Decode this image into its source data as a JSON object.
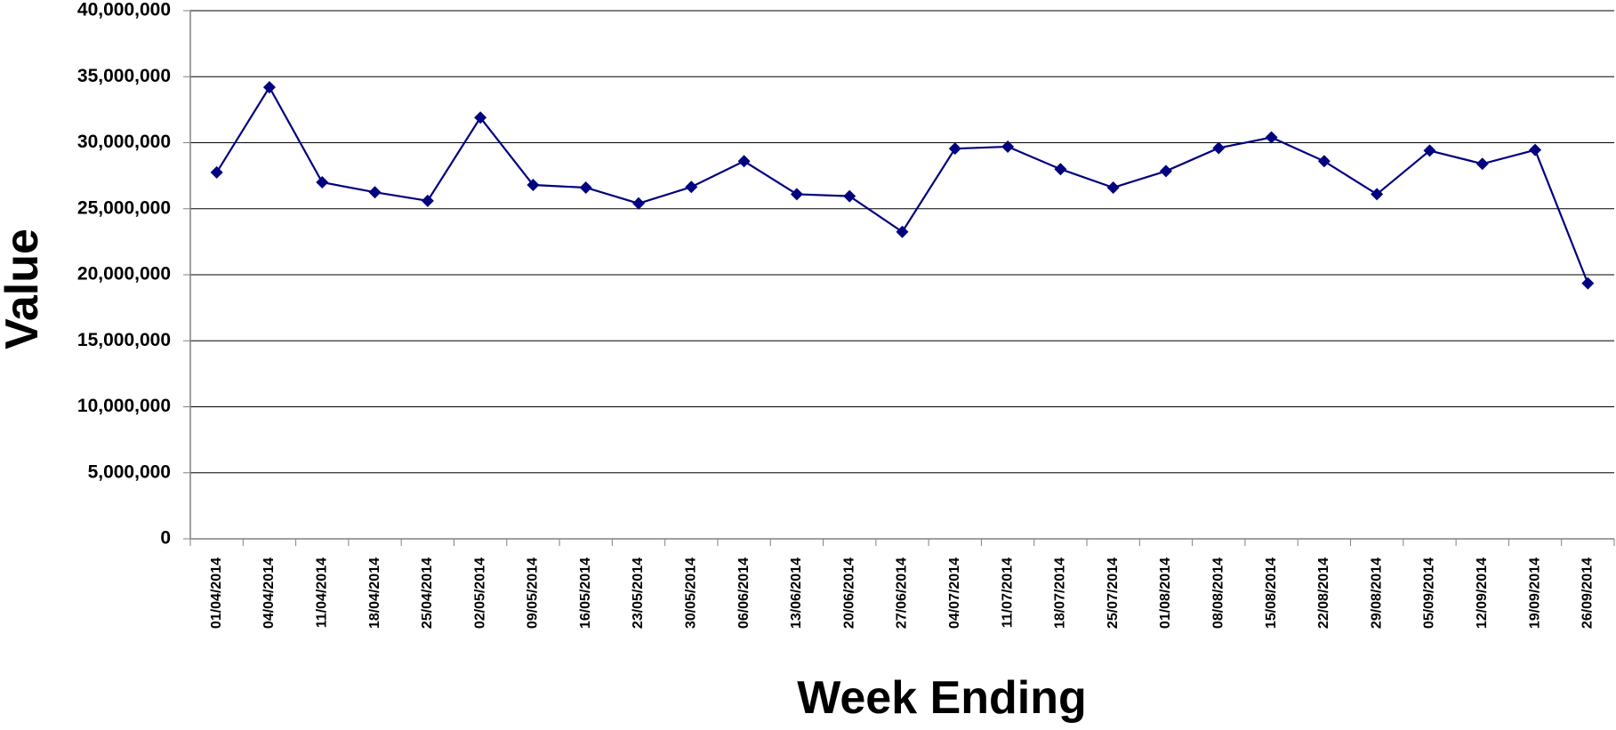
{
  "chart_data": {
    "type": "line",
    "x_label": "Week Ending",
    "y_label": "Value",
    "categories": [
      "01/04/2014",
      "04/04/2014",
      "11/04/2014",
      "18/04/2014",
      "25/04/2014",
      "02/05/2014",
      "09/05/2014",
      "16/05/2014",
      "23/05/2014",
      "30/05/2014",
      "06/06/2014",
      "13/06/2014",
      "20/06/2014",
      "27/06/2014",
      "04/07/2014",
      "11/07/2014",
      "18/07/2014",
      "25/07/2014",
      "01/08/2014",
      "08/08/2014",
      "15/08/2014",
      "22/08/2014",
      "29/08/2014",
      "05/09/2014",
      "12/09/2014",
      "19/09/2014",
      "26/09/2014"
    ],
    "series": [
      {
        "color": "#000080",
        "values": [
          27750000,
          34200000,
          27000000,
          26250000,
          25600000,
          31900000,
          26800000,
          26600000,
          25400000,
          26650000,
          28600000,
          26100000,
          25950000,
          23250000,
          29550000,
          29700000,
          28000000,
          26600000,
          27850000,
          29600000,
          30400000,
          28600000,
          26100000,
          29400000,
          28400000,
          29450000,
          19350000
        ]
      }
    ],
    "ylim": [
      0,
      40000000
    ],
    "yticks": [
      0,
      {
        "value": 5000000,
        "label": "5,000,000"
      },
      {
        "value": 10000000,
        "label": "10,000,000"
      },
      {
        "value": 15000000,
        "label": "15,000,000"
      },
      {
        "value": 20000000,
        "label": "20,000,000"
      },
      {
        "value": 25000000,
        "label": "25,000,000"
      },
      {
        "value": 30000000,
        "label": "30,000,000"
      },
      {
        "value": 35000000,
        "label": "35,000,000"
      },
      {
        "value": 40000000,
        "label": "40,000,000"
      }
    ],
    "grid": true
  }
}
